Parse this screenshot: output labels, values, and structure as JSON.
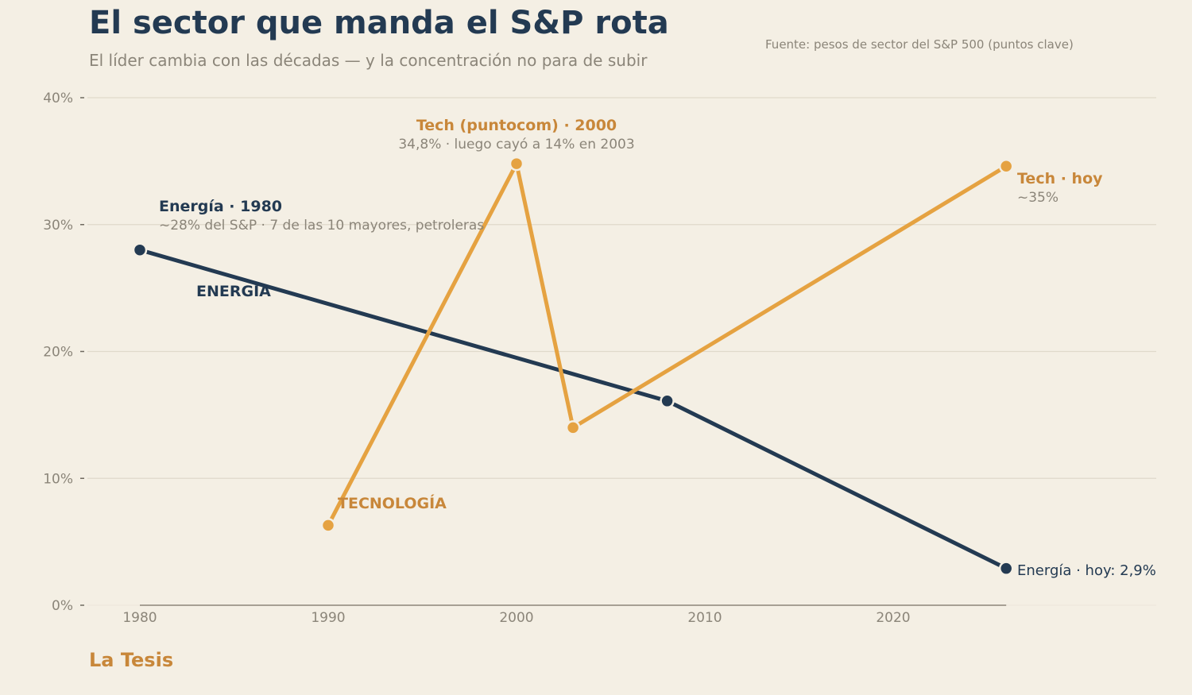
{
  "header": {
    "title": "El sector que manda el S&P rota",
    "subtitle": "El líder cambia con las décadas — y la concentración no para de subir",
    "source": "Fuente: pesos de sector del S&P 500 (puntos clave)"
  },
  "footer": {
    "brand": "La Tesis"
  },
  "colors": {
    "energy": "#233a52",
    "tech": "#e5a241",
    "tech_text": "#c8873a",
    "muted": "#8b8579",
    "grid": "#e0d9cb",
    "background": "#f4efe4"
  },
  "chart_data": {
    "type": "line",
    "title": "El sector que manda el S&P rota",
    "xlabel": "",
    "ylabel": "",
    "xlim": [
      1977.3,
      2034
    ],
    "ylim": [
      0,
      40
    ],
    "xticks": [
      1980,
      1990,
      2000,
      2010,
      2020
    ],
    "xtick_labels": [
      "1980",
      "1990",
      "2000",
      "2010",
      "2020"
    ],
    "yticks": [
      0,
      10,
      20,
      30,
      40
    ],
    "ytick_labels": [
      "0%",
      "10%",
      "20%",
      "30%",
      "40%"
    ],
    "grid": true,
    "series": [
      {
        "name": "ENERGÍA",
        "color": "#233a52",
        "x": [
          1980,
          2008,
          2026
        ],
        "y": [
          28.0,
          16.1,
          2.9
        ]
      },
      {
        "name": "TECNOLOGÍA",
        "color": "#e5a241",
        "x": [
          1990,
          2000,
          2003,
          2026
        ],
        "y": [
          6.3,
          34.8,
          14.0,
          34.6
        ]
      }
    ],
    "annotations": {
      "energy_1980_title": "Energía · 1980",
      "energy_1980_sub": "~28% del S&P · 7 de las 10 mayores, petroleras",
      "tech_2000_title": "Tech (puntocom) · 2000",
      "tech_2000_sub": "34,8% · luego cayó a 14% en 2003",
      "tech_today_title": "Tech · hoy",
      "tech_today_sub": "~35%",
      "energy_today": "Energía · hoy: 2,9%"
    }
  }
}
